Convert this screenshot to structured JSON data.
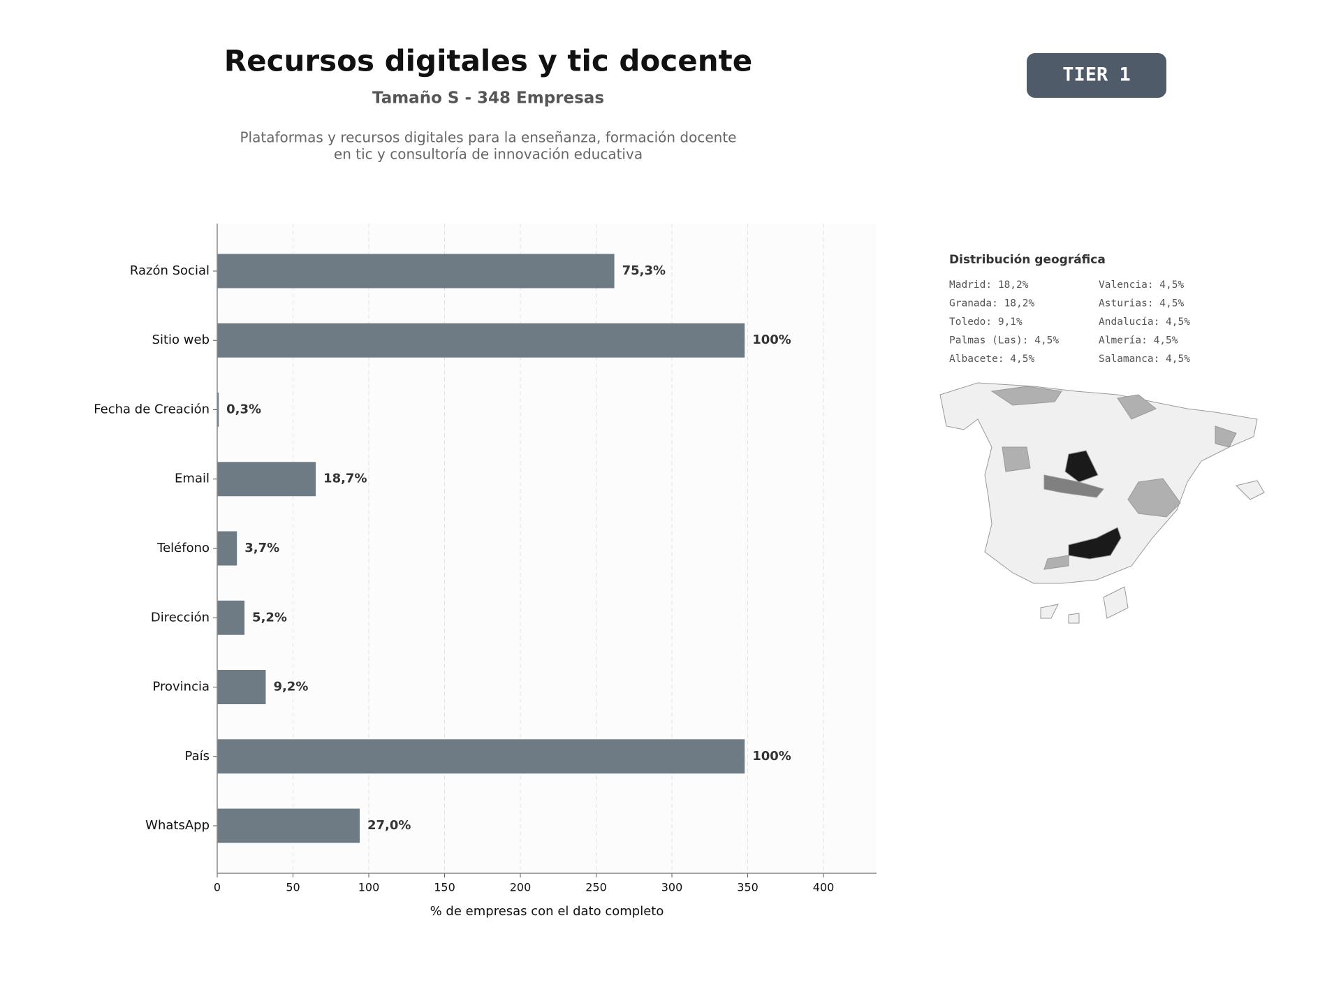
{
  "header": {
    "title": "Recursos digitales y tic docente",
    "subtitle": "Tamaño S - 348 Empresas",
    "description": [
      "Plataformas y recursos digitales para la enseñanza, formación docente",
      "en tic y consultoría de innovación educativa"
    ]
  },
  "badge": "TIER 1",
  "chart_data": {
    "type": "barh",
    "categories": [
      "Razón Social",
      "Sitio web",
      "Fecha de Creación",
      "Email",
      "Teléfono",
      "Dirección",
      "Provincia",
      "País",
      "WhatsApp"
    ],
    "values": [
      262,
      348,
      1,
      65,
      13,
      18,
      32,
      348,
      94
    ],
    "value_labels": [
      "75,3%",
      "100%",
      "0,3%",
      "18,7%",
      "3,7%",
      "5,2%",
      "9,2%",
      "100%",
      "27,0%"
    ],
    "color": "#6e7a84",
    "xlim": [
      0,
      435
    ],
    "xticks": [
      0,
      50,
      100,
      150,
      200,
      250,
      300,
      350,
      400
    ],
    "xlabel": "% de empresas con el dato completo",
    "grid": true
  },
  "geo_distribution": {
    "title": "Distribución geográfica",
    "items": [
      "Madrid: 18,2%",
      "Granada: 18,2%",
      "Toledo: 9,1%",
      "Palmas (Las): 4,5%",
      "Albacete: 4,5%",
      "Valencia: 4,5%",
      "Asturias: 4,5%",
      "Andalucía: 4,5%",
      "Almería: 4,5%",
      "Salamanca: 4,5%"
    ]
  }
}
